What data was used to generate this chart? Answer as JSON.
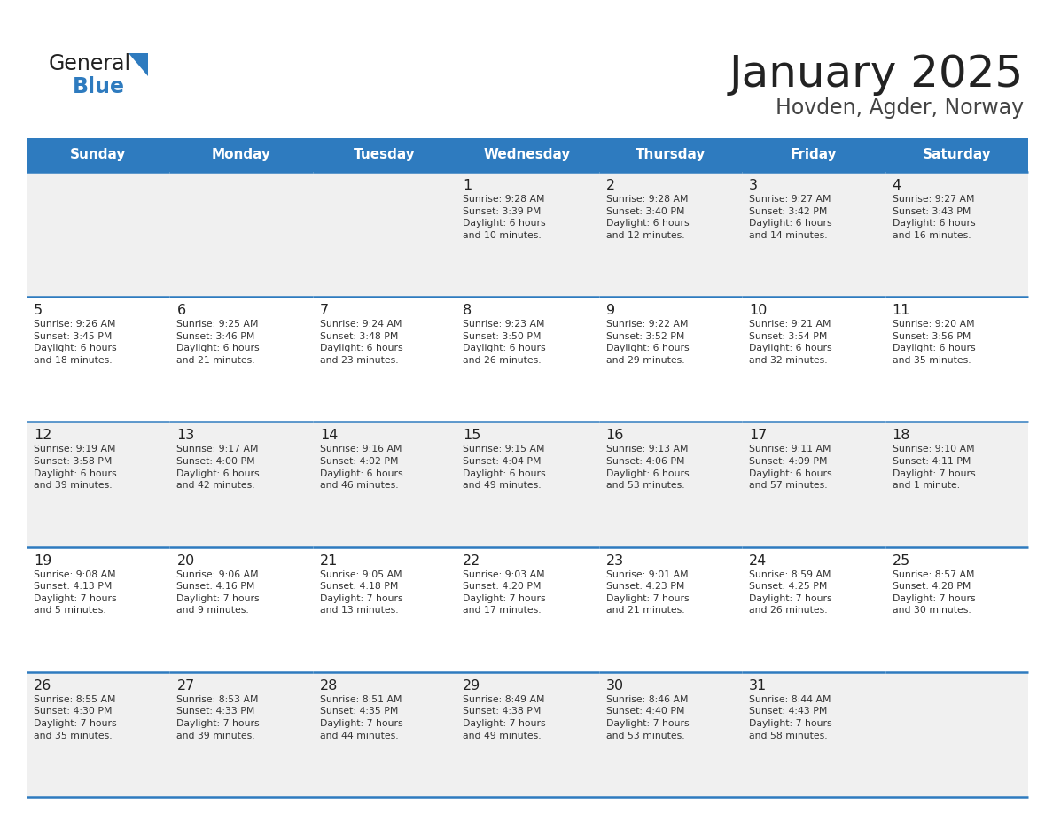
{
  "title": "January 2025",
  "subtitle": "Hovden, Agder, Norway",
  "days_of_week": [
    "Sunday",
    "Monday",
    "Tuesday",
    "Wednesday",
    "Thursday",
    "Friday",
    "Saturday"
  ],
  "header_bg": "#2E7BBF",
  "header_text": "#FFFFFF",
  "row_bg_odd": "#F0F0F0",
  "row_bg_even": "#FFFFFF",
  "border_color": "#2E7BBF",
  "day_number_color": "#222222",
  "cell_text_color": "#333333",
  "title_color": "#222222",
  "subtitle_color": "#444444",
  "logo_general_color": "#222222",
  "logo_blue_color": "#2E7BBF",
  "logo_triangle_color": "#2E7BBF",
  "calendar_data": [
    [
      {
        "day": null,
        "text": ""
      },
      {
        "day": null,
        "text": ""
      },
      {
        "day": null,
        "text": ""
      },
      {
        "day": 1,
        "text": "Sunrise: 9:28 AM\nSunset: 3:39 PM\nDaylight: 6 hours\nand 10 minutes."
      },
      {
        "day": 2,
        "text": "Sunrise: 9:28 AM\nSunset: 3:40 PM\nDaylight: 6 hours\nand 12 minutes."
      },
      {
        "day": 3,
        "text": "Sunrise: 9:27 AM\nSunset: 3:42 PM\nDaylight: 6 hours\nand 14 minutes."
      },
      {
        "day": 4,
        "text": "Sunrise: 9:27 AM\nSunset: 3:43 PM\nDaylight: 6 hours\nand 16 minutes."
      }
    ],
    [
      {
        "day": 5,
        "text": "Sunrise: 9:26 AM\nSunset: 3:45 PM\nDaylight: 6 hours\nand 18 minutes."
      },
      {
        "day": 6,
        "text": "Sunrise: 9:25 AM\nSunset: 3:46 PM\nDaylight: 6 hours\nand 21 minutes."
      },
      {
        "day": 7,
        "text": "Sunrise: 9:24 AM\nSunset: 3:48 PM\nDaylight: 6 hours\nand 23 minutes."
      },
      {
        "day": 8,
        "text": "Sunrise: 9:23 AM\nSunset: 3:50 PM\nDaylight: 6 hours\nand 26 minutes."
      },
      {
        "day": 9,
        "text": "Sunrise: 9:22 AM\nSunset: 3:52 PM\nDaylight: 6 hours\nand 29 minutes."
      },
      {
        "day": 10,
        "text": "Sunrise: 9:21 AM\nSunset: 3:54 PM\nDaylight: 6 hours\nand 32 minutes."
      },
      {
        "day": 11,
        "text": "Sunrise: 9:20 AM\nSunset: 3:56 PM\nDaylight: 6 hours\nand 35 minutes."
      }
    ],
    [
      {
        "day": 12,
        "text": "Sunrise: 9:19 AM\nSunset: 3:58 PM\nDaylight: 6 hours\nand 39 minutes."
      },
      {
        "day": 13,
        "text": "Sunrise: 9:17 AM\nSunset: 4:00 PM\nDaylight: 6 hours\nand 42 minutes."
      },
      {
        "day": 14,
        "text": "Sunrise: 9:16 AM\nSunset: 4:02 PM\nDaylight: 6 hours\nand 46 minutes."
      },
      {
        "day": 15,
        "text": "Sunrise: 9:15 AM\nSunset: 4:04 PM\nDaylight: 6 hours\nand 49 minutes."
      },
      {
        "day": 16,
        "text": "Sunrise: 9:13 AM\nSunset: 4:06 PM\nDaylight: 6 hours\nand 53 minutes."
      },
      {
        "day": 17,
        "text": "Sunrise: 9:11 AM\nSunset: 4:09 PM\nDaylight: 6 hours\nand 57 minutes."
      },
      {
        "day": 18,
        "text": "Sunrise: 9:10 AM\nSunset: 4:11 PM\nDaylight: 7 hours\nand 1 minute."
      }
    ],
    [
      {
        "day": 19,
        "text": "Sunrise: 9:08 AM\nSunset: 4:13 PM\nDaylight: 7 hours\nand 5 minutes."
      },
      {
        "day": 20,
        "text": "Sunrise: 9:06 AM\nSunset: 4:16 PM\nDaylight: 7 hours\nand 9 minutes."
      },
      {
        "day": 21,
        "text": "Sunrise: 9:05 AM\nSunset: 4:18 PM\nDaylight: 7 hours\nand 13 minutes."
      },
      {
        "day": 22,
        "text": "Sunrise: 9:03 AM\nSunset: 4:20 PM\nDaylight: 7 hours\nand 17 minutes."
      },
      {
        "day": 23,
        "text": "Sunrise: 9:01 AM\nSunset: 4:23 PM\nDaylight: 7 hours\nand 21 minutes."
      },
      {
        "day": 24,
        "text": "Sunrise: 8:59 AM\nSunset: 4:25 PM\nDaylight: 7 hours\nand 26 minutes."
      },
      {
        "day": 25,
        "text": "Sunrise: 8:57 AM\nSunset: 4:28 PM\nDaylight: 7 hours\nand 30 minutes."
      }
    ],
    [
      {
        "day": 26,
        "text": "Sunrise: 8:55 AM\nSunset: 4:30 PM\nDaylight: 7 hours\nand 35 minutes."
      },
      {
        "day": 27,
        "text": "Sunrise: 8:53 AM\nSunset: 4:33 PM\nDaylight: 7 hours\nand 39 minutes."
      },
      {
        "day": 28,
        "text": "Sunrise: 8:51 AM\nSunset: 4:35 PM\nDaylight: 7 hours\nand 44 minutes."
      },
      {
        "day": 29,
        "text": "Sunrise: 8:49 AM\nSunset: 4:38 PM\nDaylight: 7 hours\nand 49 minutes."
      },
      {
        "day": 30,
        "text": "Sunrise: 8:46 AM\nSunset: 4:40 PM\nDaylight: 7 hours\nand 53 minutes."
      },
      {
        "day": 31,
        "text": "Sunrise: 8:44 AM\nSunset: 4:43 PM\nDaylight: 7 hours\nand 58 minutes."
      },
      {
        "day": null,
        "text": ""
      }
    ]
  ]
}
